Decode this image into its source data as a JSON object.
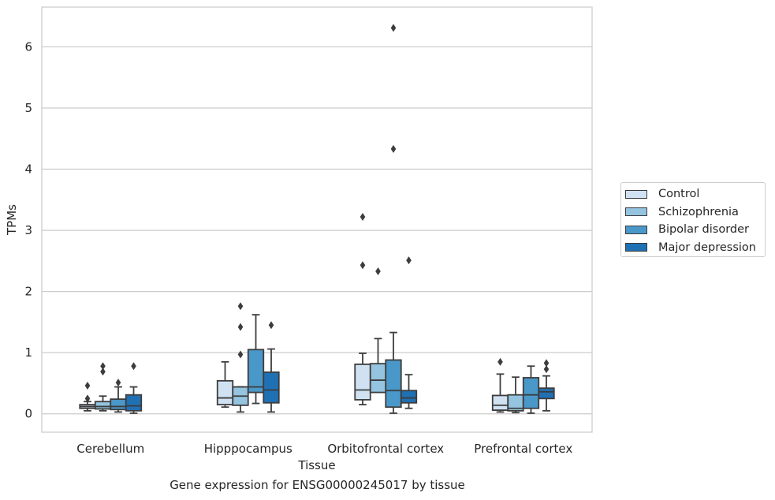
{
  "caption": "Gene expression for ENSG00000245017 by tissue",
  "chart_data": {
    "type": "box",
    "xlabel": "Tissue",
    "ylabel": "TPMs",
    "categories": [
      "Cerebellum",
      "Hipppocampus",
      "Orbitofrontal cortex",
      "Prefrontal cortex"
    ],
    "ylim": [
      -0.3,
      6.65
    ],
    "yticks": [
      0,
      1,
      2,
      3,
      4,
      5,
      6
    ],
    "grid": "horizontal",
    "legend_position": "right",
    "series": [
      {
        "name": "Control",
        "color": "#d0e1f2",
        "boxes": [
          {
            "whislo": 0.05,
            "q1": 0.09,
            "med": 0.12,
            "q3": 0.15,
            "whishi": 0.2,
            "fliers": [
              0.25,
              0.46
            ]
          },
          {
            "whislo": 0.11,
            "q1": 0.15,
            "med": 0.26,
            "q3": 0.54,
            "whishi": 0.85,
            "fliers": []
          },
          {
            "whislo": 0.15,
            "q1": 0.23,
            "med": 0.39,
            "q3": 0.81,
            "whishi": 0.99,
            "fliers": [
              2.43,
              3.22
            ]
          },
          {
            "whislo": 0.03,
            "q1": 0.06,
            "med": 0.14,
            "q3": 0.3,
            "whishi": 0.65,
            "fliers": [
              0.85
            ]
          }
        ]
      },
      {
        "name": "Schizophrenia",
        "color": "#94c4df",
        "boxes": [
          {
            "whislo": 0.05,
            "q1": 0.08,
            "med": 0.12,
            "q3": 0.2,
            "whishi": 0.29,
            "fliers": [
              0.69,
              0.78
            ]
          },
          {
            "whislo": 0.03,
            "q1": 0.14,
            "med": 0.29,
            "q3": 0.44,
            "whishi": 0.44,
            "fliers": [
              0.97,
              1.42,
              1.76
            ]
          },
          {
            "whislo": 0.35,
            "q1": 0.35,
            "med": 0.55,
            "q3": 0.82,
            "whishi": 1.23,
            "fliers": [
              2.33
            ]
          },
          {
            "whislo": 0.02,
            "q1": 0.05,
            "med": 0.09,
            "q3": 0.31,
            "whishi": 0.6,
            "fliers": []
          }
        ]
      },
      {
        "name": "Bipolar disorder",
        "color": "#4a98c9",
        "boxes": [
          {
            "whislo": 0.03,
            "q1": 0.07,
            "med": 0.12,
            "q3": 0.24,
            "whishi": 0.44,
            "fliers": [
              0.51
            ]
          },
          {
            "whislo": 0.17,
            "q1": 0.35,
            "med": 0.44,
            "q3": 1.05,
            "whishi": 1.62,
            "fliers": []
          },
          {
            "whislo": 0.01,
            "q1": 0.11,
            "med": 0.38,
            "q3": 0.88,
            "whishi": 1.33,
            "fliers": [
              4.33,
              6.31
            ]
          },
          {
            "whislo": 0.01,
            "q1": 0.09,
            "med": 0.31,
            "q3": 0.59,
            "whishi": 0.78,
            "fliers": []
          }
        ]
      },
      {
        "name": "Major depression",
        "color": "#2070b4",
        "boxes": [
          {
            "whislo": 0.01,
            "q1": 0.05,
            "med": 0.13,
            "q3": 0.31,
            "whishi": 0.44,
            "fliers": [
              0.78
            ]
          },
          {
            "whislo": 0.03,
            "q1": 0.18,
            "med": 0.39,
            "q3": 0.68,
            "whishi": 1.06,
            "fliers": [
              1.45
            ]
          },
          {
            "whislo": 0.09,
            "q1": 0.18,
            "med": 0.26,
            "q3": 0.38,
            "whishi": 0.64,
            "fliers": [
              2.51
            ]
          },
          {
            "whislo": 0.05,
            "q1": 0.25,
            "med": 0.36,
            "q3": 0.42,
            "whishi": 0.62,
            "fliers": [
              0.73,
              0.83
            ]
          }
        ]
      }
    ]
  }
}
